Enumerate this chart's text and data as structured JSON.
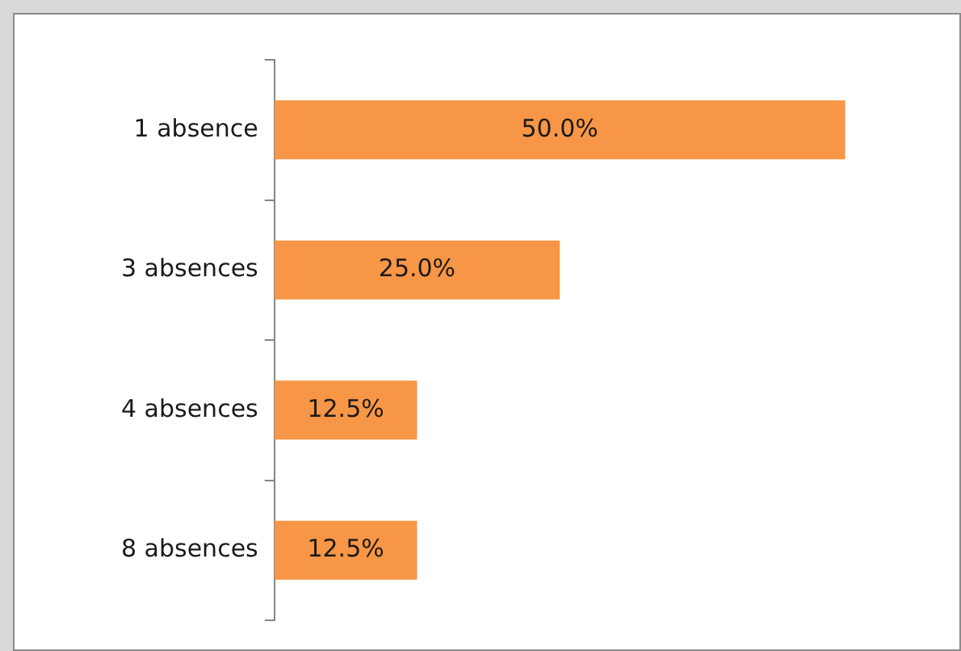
{
  "chart_data": {
    "type": "bar",
    "orientation": "horizontal",
    "categories": [
      "1 absence",
      "3 absences",
      "4 absences",
      "8 absences"
    ],
    "values": [
      50,
      25,
      12.5,
      12.5
    ],
    "value_labels": [
      "50.0%",
      "25.0%",
      "12.5%",
      "12.5%"
    ],
    "color": "#f79646",
    "xlim": [
      0,
      60
    ],
    "tick_labels": "y",
    "legend": false
  }
}
